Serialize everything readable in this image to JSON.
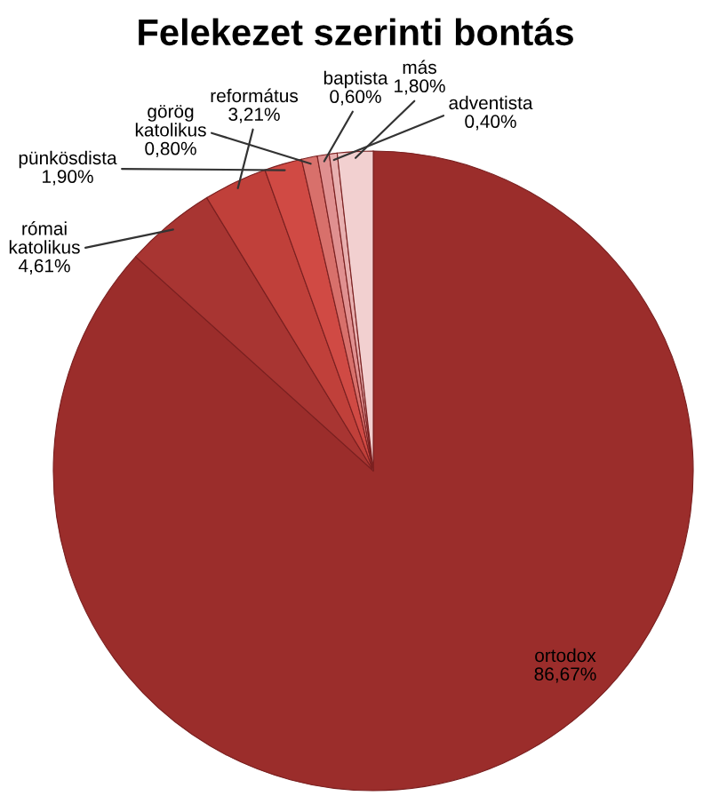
{
  "chart_data": {
    "type": "pie",
    "title": "Felekezet szerinti bontás",
    "categories": [
      "ortodox",
      "római katolikus",
      "református",
      "pünkösdista",
      "görög katolikus",
      "baptista",
      "adventista",
      "más"
    ],
    "values": [
      86.67,
      4.61,
      3.21,
      1.9,
      0.8,
      0.6,
      0.4,
      1.8
    ],
    "value_labels": [
      "86,67%",
      "4,61%",
      "3,21%",
      "1,90%",
      "0,80%",
      "0,60%",
      "0,40%",
      "1,80%"
    ],
    "colors": [
      "#9b2d2b",
      "#a83532",
      "#c0403a",
      "#d04a44",
      "#d8706b",
      "#e09090",
      "#e8b0b0",
      "#f2d0d0"
    ],
    "legend": false
  }
}
